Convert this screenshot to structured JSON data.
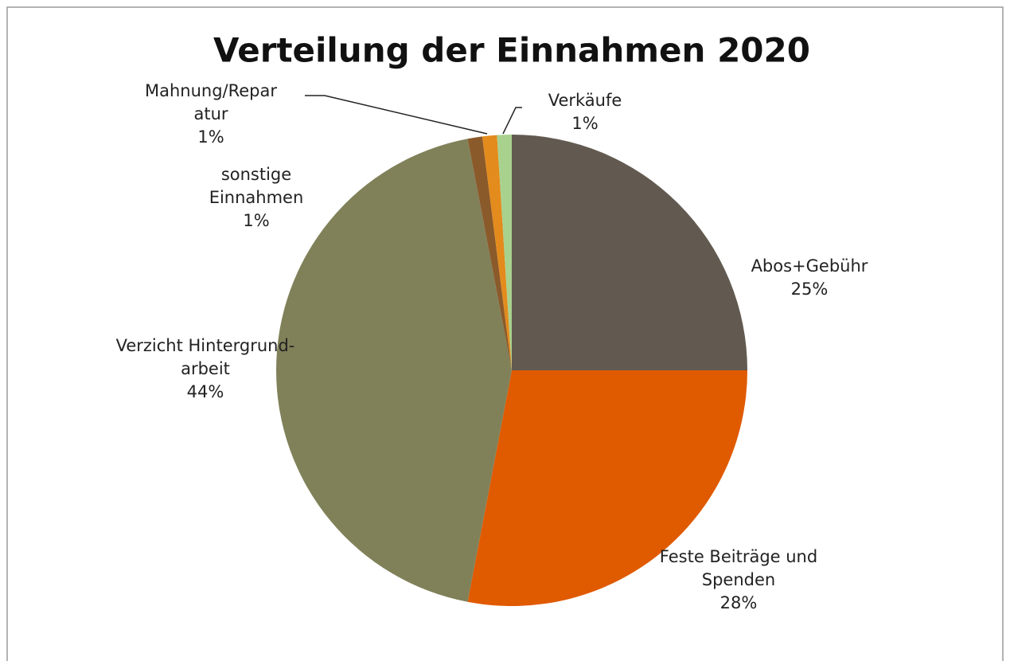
{
  "chart_data": {
    "type": "pie",
    "title": "Verteilung der Einnahmen 2020",
    "categories": [
      "Abos+Gebühr",
      "Feste Beiträge und Spenden",
      "Verzicht Hintergrund-arbeit",
      "sonstige Einnahmen",
      "Mahnung/Reparatur",
      "Verkäufe"
    ],
    "values": [
      25,
      28,
      44,
      1,
      1,
      1
    ],
    "value_labels": [
      "25%",
      "28%",
      "44%",
      "1%",
      "1%",
      "1%"
    ],
    "colors": [
      "#625a50",
      "#e05a00",
      "#808159",
      "#8b5a2b",
      "#e38b1c",
      "#a9d18e"
    ]
  }
}
